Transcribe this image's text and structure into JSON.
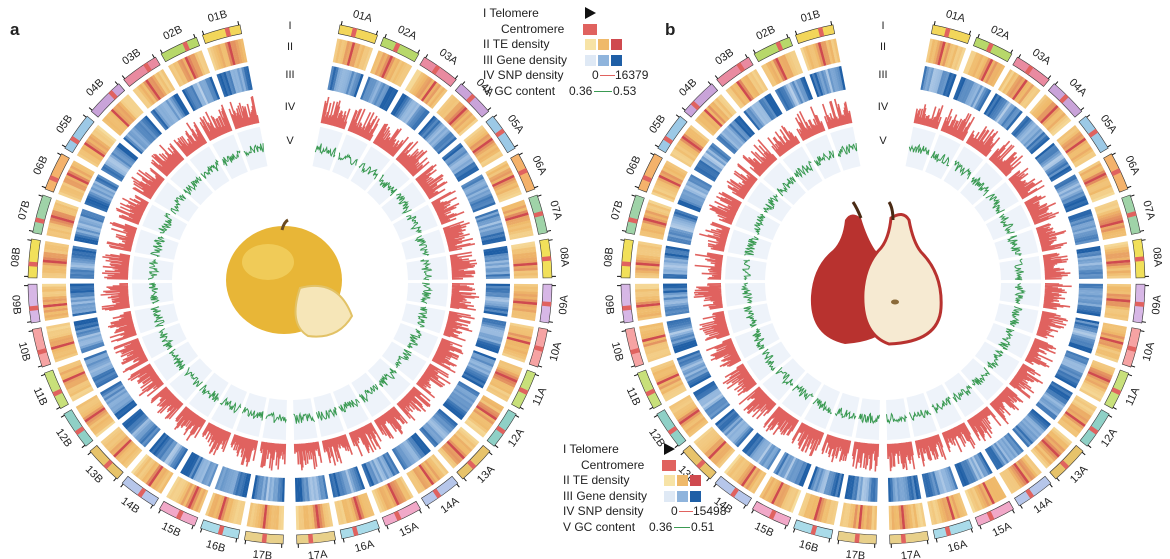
{
  "panel_a": {
    "label": "a",
    "fruit": "Asian pear (yellow round fruit with slice)",
    "ring_labels": [
      "I",
      "II",
      "III",
      "IV",
      "V"
    ],
    "chromosomes_right": [
      "01A",
      "02A",
      "03A",
      "04A",
      "05A",
      "06A",
      "07A",
      "08A",
      "09A",
      "10A",
      "11A",
      "12A",
      "13A",
      "14A",
      "15A",
      "16A",
      "17A"
    ],
    "chromosomes_left": [
      "01B",
      "02B",
      "03B",
      "04B",
      "05B",
      "06B",
      "07B",
      "08B",
      "09B",
      "10B",
      "11B",
      "12B",
      "13B",
      "14B",
      "15B",
      "16B",
      "17B"
    ],
    "legend": {
      "telomere": "I Telomere",
      "centromere": "Centromere",
      "te": "II TE density",
      "gene": "III Gene density",
      "snp": "IV SNP density",
      "snp_min": "0",
      "snp_max": "16379",
      "gc": "V GC content",
      "gc_min": "0.36",
      "gc_max": "0.53"
    }
  },
  "panel_b": {
    "label": "b",
    "fruit": "Red pear (whole pear with half)",
    "ring_labels": [
      "I",
      "II",
      "III",
      "IV",
      "V"
    ],
    "chromosomes_right": [
      "01A",
      "02A",
      "03A",
      "04A",
      "05A",
      "06A",
      "07A",
      "08A",
      "09A",
      "10A",
      "11A",
      "12A",
      "13A",
      "14A",
      "15A",
      "16A",
      "17A"
    ],
    "chromosomes_left": [
      "01B",
      "02B",
      "03B",
      "04B",
      "05B",
      "06B",
      "07B",
      "08B",
      "09B",
      "10B",
      "11B",
      "12B",
      "13B",
      "14B",
      "15B",
      "16B",
      "17B"
    ],
    "legend": {
      "telomere": "I Telomere",
      "centromere": "Centromere",
      "te": "II TE density",
      "gene": "III Gene density",
      "snp": "IV SNP density",
      "snp_min": "0",
      "snp_max": "15498",
      "gc": "V GC content",
      "gc_min": "0.36",
      "gc_max": "0.51"
    }
  },
  "colors": {
    "te": [
      "#f7e3a6",
      "#efb96a",
      "#cf4a4f"
    ],
    "gene": [
      "#dfe9f5",
      "#8fb4dc",
      "#1f5fa6"
    ],
    "snp": "#e0625f",
    "gc": "#3a9a52",
    "centromere": "#e0625f",
    "telomere": "#111111"
  }
}
